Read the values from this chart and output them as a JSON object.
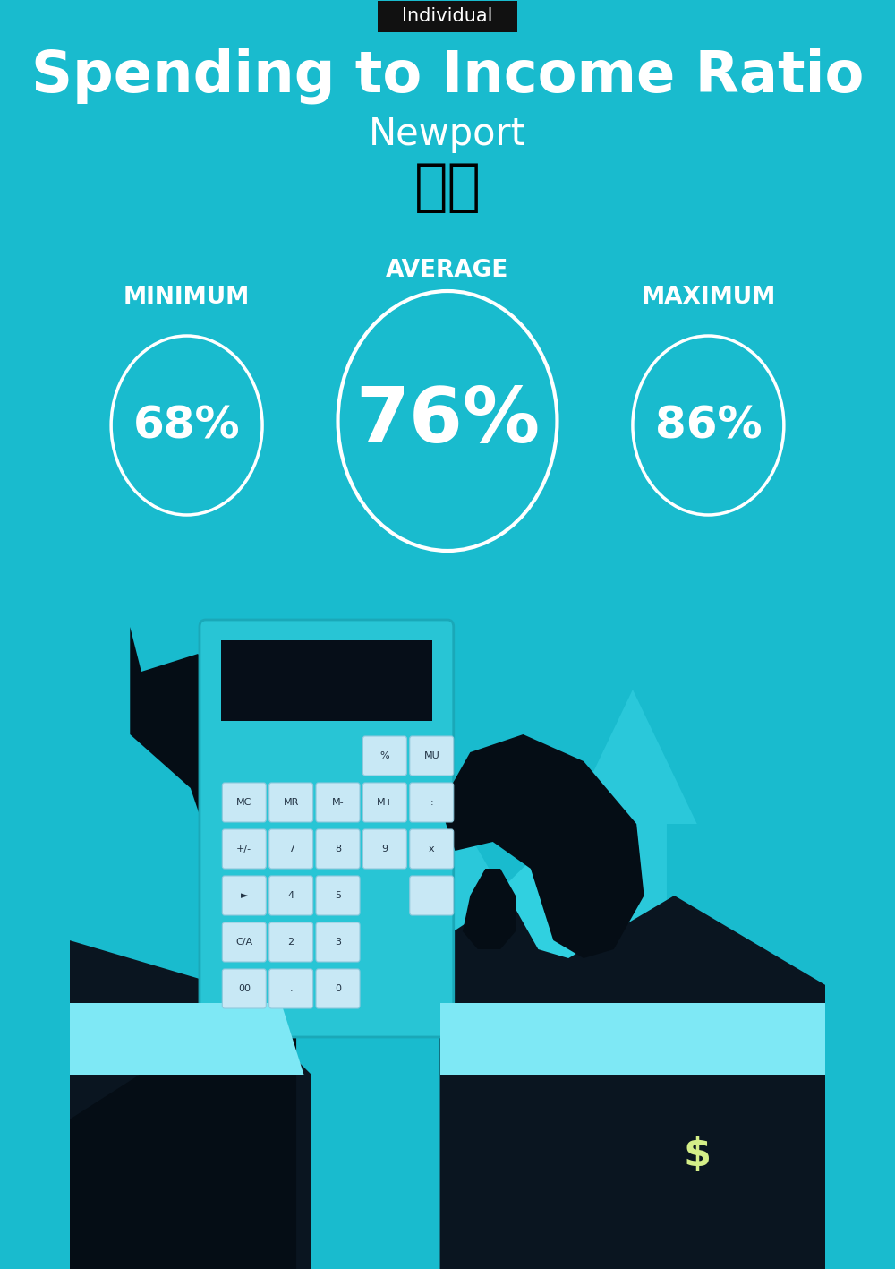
{
  "title": "Spending to Income Ratio",
  "subtitle": "Newport",
  "label_tag": "Individual",
  "bg_color": "#19BBCE",
  "tag_bg_color": "#111111",
  "tag_text_color": "#ffffff",
  "title_color": "#ffffff",
  "subtitle_color": "#ffffff",
  "circle_edge_color": "#ffffff",
  "min_label": "MINIMUM",
  "avg_label": "AVERAGE",
  "max_label": "MAXIMUM",
  "min_value": "68%",
  "avg_value": "76%",
  "max_value": "86%",
  "label_color": "#ffffff",
  "value_color": "#ffffff",
  "illus_light": "#2AC8DA",
  "illus_mid": "#1BAEBD",
  "illus_dark": "#12909F",
  "house_light": "#30D0E0",
  "house_mid": "#1EB8C8",
  "dark_color": "#050D15",
  "suit_color": "#0A1520",
  "cuff_color": "#7EE8F5",
  "calc_body": "#28C5D5",
  "calc_screen": "#060E18",
  "btn_face": "#C8E8F5",
  "money_bag": "#1AA8B8"
}
